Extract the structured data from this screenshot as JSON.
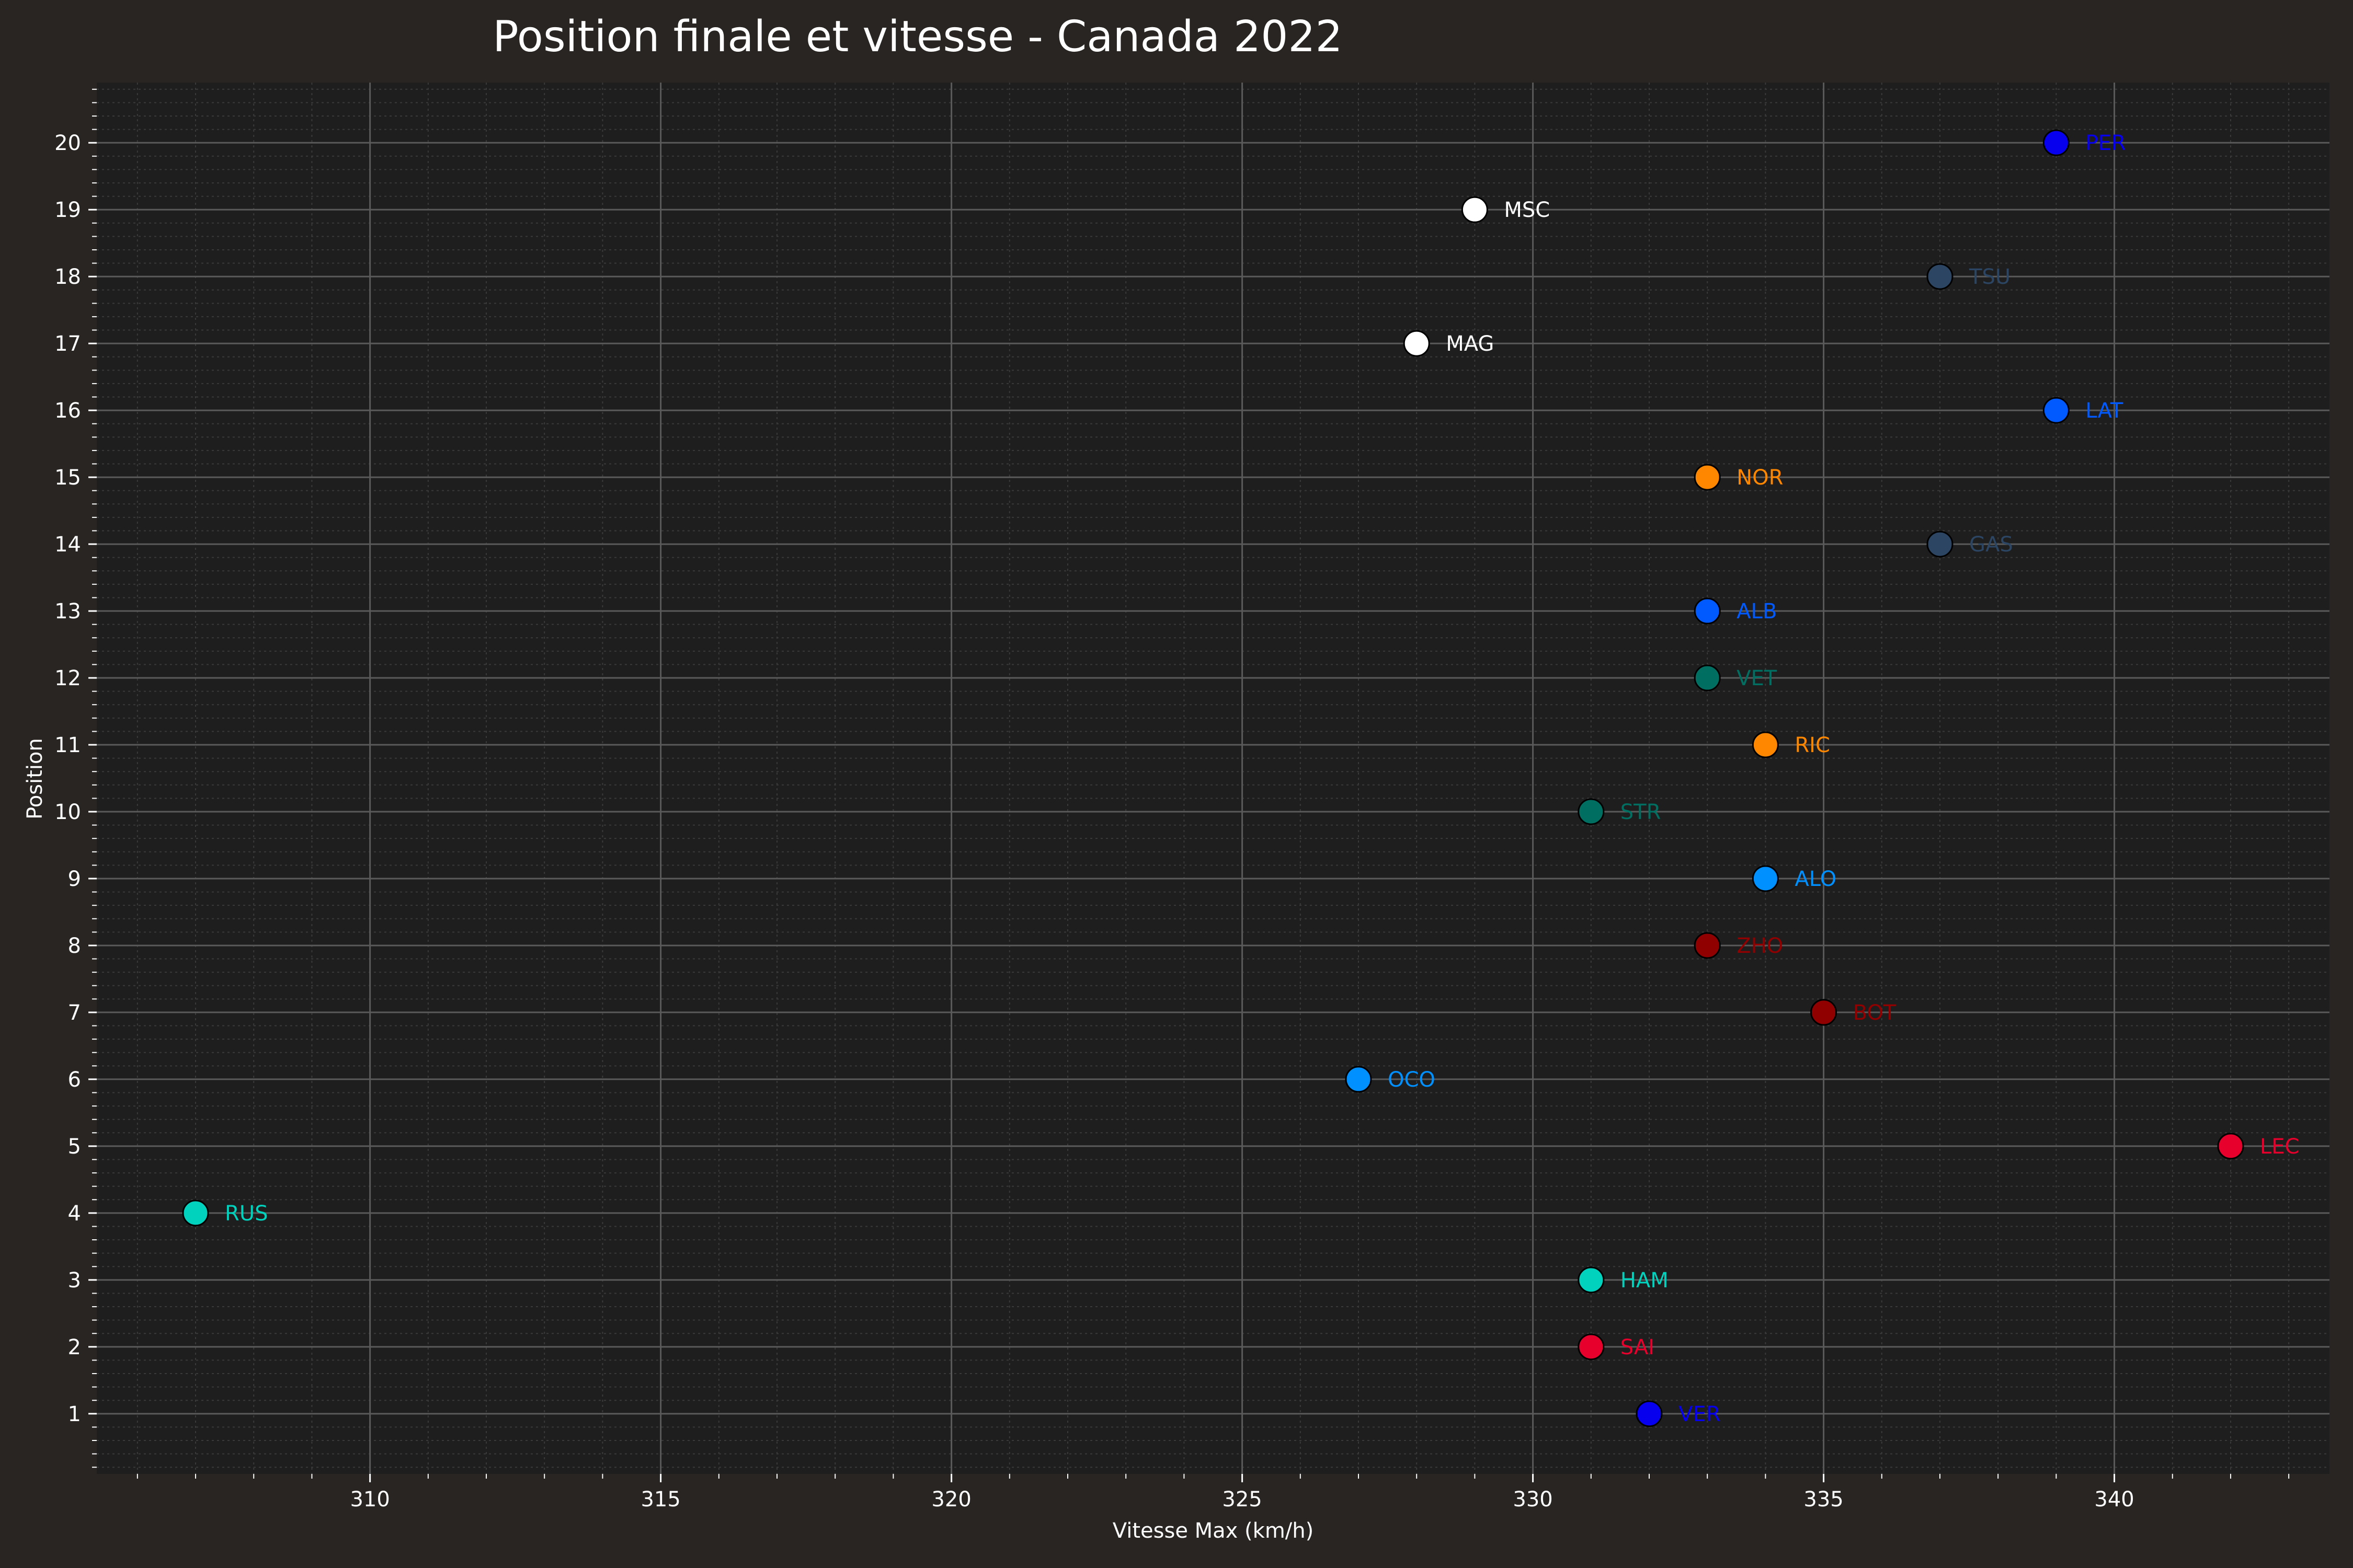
{
  "chart_data": {
    "type": "scatter",
    "title": "Position finale et vitesse - Canada 2022",
    "xlabel": "Vitesse Max (km/h)",
    "ylabel": "Position",
    "xlim": [
      305.3,
      343.7
    ],
    "ylim": [
      0.1,
      20.9
    ],
    "xticks": [
      310,
      315,
      320,
      325,
      330,
      335,
      340
    ],
    "yticks": [
      1,
      2,
      3,
      4,
      5,
      6,
      7,
      8,
      9,
      10,
      11,
      12,
      13,
      14,
      15,
      16,
      17,
      18,
      19,
      20
    ],
    "grid": true,
    "legend": "none",
    "points": [
      {
        "label": "VER",
        "x": 332,
        "y": 1,
        "color": "#0600ef"
      },
      {
        "label": "SAI",
        "x": 331,
        "y": 2,
        "color": "#e8002d"
      },
      {
        "label": "HAM",
        "x": 331,
        "y": 3,
        "color": "#00d2be"
      },
      {
        "label": "RUS",
        "x": 307,
        "y": 4,
        "color": "#00d2be"
      },
      {
        "label": "LEC",
        "x": 342,
        "y": 5,
        "color": "#e8002d"
      },
      {
        "label": "OCO",
        "x": 327,
        "y": 6,
        "color": "#0090ff"
      },
      {
        "label": "BOT",
        "x": 335,
        "y": 7,
        "color": "#900000"
      },
      {
        "label": "ZHO",
        "x": 333,
        "y": 8,
        "color": "#900000"
      },
      {
        "label": "ALO",
        "x": 334,
        "y": 9,
        "color": "#0090ff"
      },
      {
        "label": "STR",
        "x": 331,
        "y": 10,
        "color": "#006f62"
      },
      {
        "label": "RIC",
        "x": 334,
        "y": 11,
        "color": "#ff8700"
      },
      {
        "label": "VET",
        "x": 333,
        "y": 12,
        "color": "#006f62"
      },
      {
        "label": "ALB",
        "x": 333,
        "y": 13,
        "color": "#005aff"
      },
      {
        "label": "GAS",
        "x": 337,
        "y": 14,
        "color": "#2b4562"
      },
      {
        "label": "NOR",
        "x": 333,
        "y": 15,
        "color": "#ff8700"
      },
      {
        "label": "LAT",
        "x": 339,
        "y": 16,
        "color": "#005aff"
      },
      {
        "label": "MAG",
        "x": 328,
        "y": 17,
        "color": "#ffffff"
      },
      {
        "label": "TSU",
        "x": 337,
        "y": 18,
        "color": "#2b4562"
      },
      {
        "label": "MSC",
        "x": 329,
        "y": 19,
        "color": "#ffffff"
      },
      {
        "label": "PER",
        "x": 339,
        "y": 20,
        "color": "#0600ef"
      }
    ]
  },
  "colors": {
    "background": "#282523",
    "plot_background": "#1e1e1e",
    "text": "#ffffff",
    "grid_major": "#5a5a5a",
    "grid_minor": "#3a3a3a"
  }
}
